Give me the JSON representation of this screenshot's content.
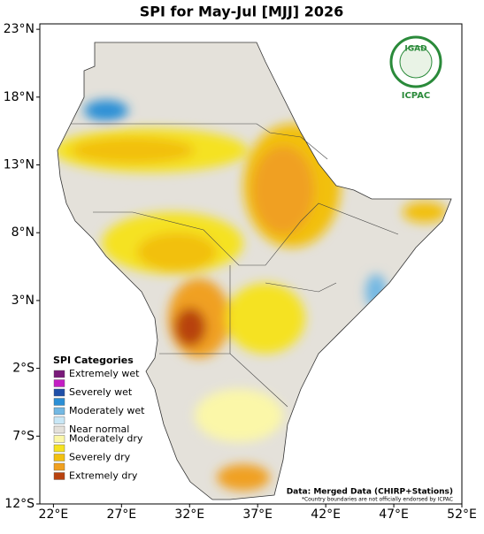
{
  "title": "SPI for May-Jul [MJJ] 2026",
  "map": {
    "xlim": [
      21,
      52
    ],
    "ylim": [
      -12,
      23.4
    ],
    "xticks": [
      {
        "value": 22,
        "label": "22°E"
      },
      {
        "value": 27,
        "label": "27°E"
      },
      {
        "value": 32,
        "label": "32°E"
      },
      {
        "value": 37,
        "label": "37°E"
      },
      {
        "value": 42,
        "label": "42°E"
      },
      {
        "value": 47,
        "label": "47°E"
      },
      {
        "value": 52,
        "label": "52°E"
      }
    ],
    "yticks": [
      {
        "value": 23,
        "label": "23°N"
      },
      {
        "value": 18,
        "label": "18°N"
      },
      {
        "value": 13,
        "label": "13°N"
      },
      {
        "value": 8,
        "label": "8°N"
      },
      {
        "value": 3,
        "label": "3°N"
      },
      {
        "value": -2,
        "label": "2°S"
      },
      {
        "value": -7,
        "label": "7°S"
      },
      {
        "value": -12,
        "label": "12°S"
      }
    ]
  },
  "legend": {
    "title": "SPI Categories",
    "items": [
      {
        "label": "Extremely wet",
        "colors": [
          "#7a1a7a",
          "#c41ec4"
        ]
      },
      {
        "label": "Severely wet",
        "colors": [
          "#1f4fa8",
          "#2b8fd6"
        ]
      },
      {
        "label": "Moderately wet",
        "colors": [
          "#73b8e3",
          "#c8e7f6"
        ]
      },
      {
        "label": "Near normal",
        "colors": [
          "#e4e1da"
        ]
      },
      {
        "label": "Moderately dry",
        "colors": [
          "#fbf7a8",
          "#f5e222"
        ]
      },
      {
        "label": "Severely dry",
        "colors": [
          "#f2c010",
          "#f0a020"
        ]
      },
      {
        "label": "Extremely dry",
        "colors": [
          "#b8420f"
        ]
      }
    ]
  },
  "credit": "Data: Merged Data (CHIRP+Stations)",
  "footnote": "*Country boundaries are not officially endorsed by ICPAC",
  "logo": {
    "name": "IGAD",
    "org": "ICPAC"
  }
}
